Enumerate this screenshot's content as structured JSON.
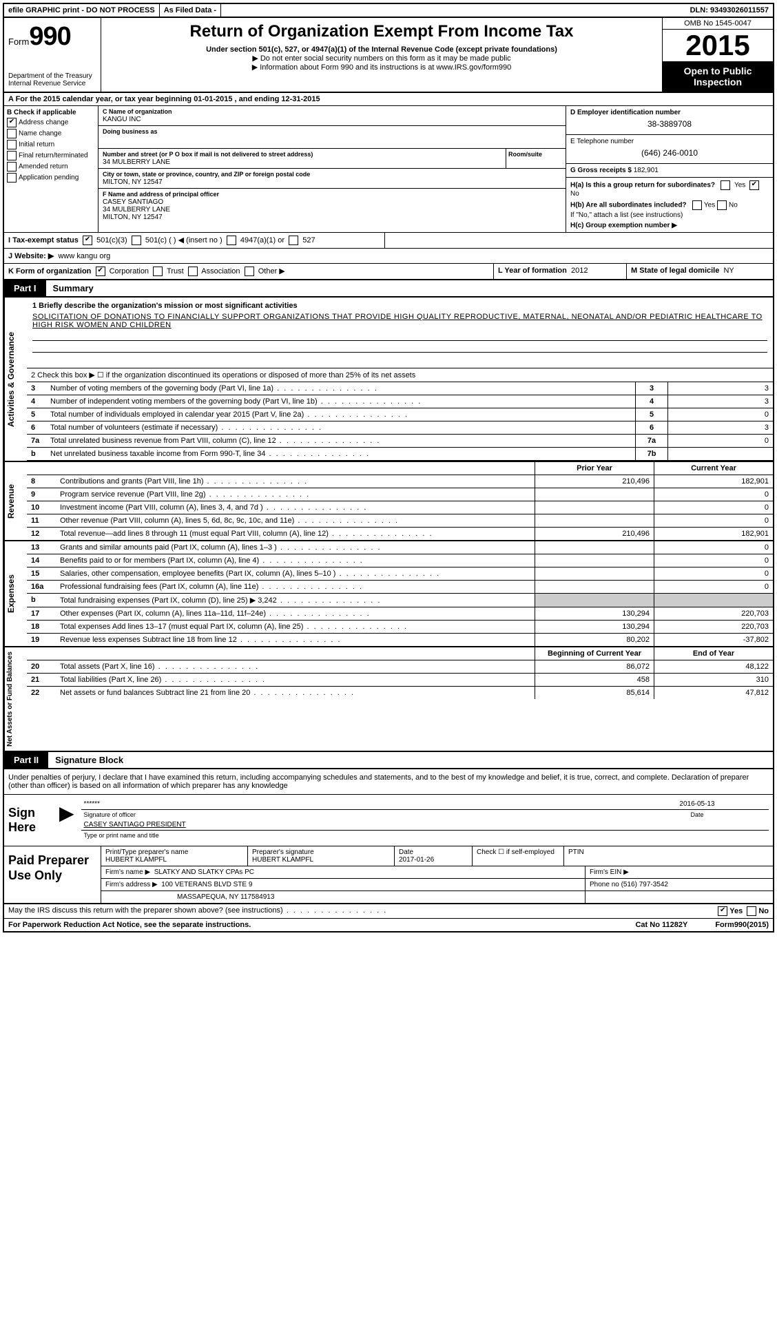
{
  "topbar": {
    "efile": "efile GRAPHIC print - DO NOT PROCESS",
    "asfiled": "As Filed Data -",
    "dln_label": "DLN:",
    "dln": "93493026011557"
  },
  "header": {
    "form_prefix": "Form",
    "form_no": "990",
    "dept": "Department of the Treasury\nInternal Revenue Service",
    "title": "Return of Organization Exempt From Income Tax",
    "sub1": "Under section 501(c), 527, or 4947(a)(1) of the Internal Revenue Code (except private foundations)",
    "sub2": "▶ Do not enter social security numbers on this form as it may be made public",
    "sub3": "▶ Information about Form 990 and its instructions is at www.IRS.gov/form990",
    "omb": "OMB No 1545-0047",
    "year": "2015",
    "open": "Open to Public Inspection"
  },
  "rowA": "A  For the 2015 calendar year, or tax year beginning 01-01-2015    , and ending 12-31-2015",
  "B": {
    "label": "B Check if applicable",
    "items": [
      "Address change",
      "Name change",
      "Initial return",
      "Final return/terminated",
      "Amended return",
      "Application pending"
    ],
    "checked_idx": 0
  },
  "C": {
    "name_label": "C Name of organization",
    "name": "KANGU INC",
    "dba_label": "Doing business as",
    "street_label": "Number and street (or P O box if mail is not delivered to street address)",
    "room_label": "Room/suite",
    "street": "34 MULBERRY LANE",
    "city_label": "City or town, state or province, country, and ZIP or foreign postal code",
    "city": "MILTON, NY 12547",
    "F_label": "F Name and address of principal officer",
    "F_name": "CASEY SANTIAGO",
    "F_street": "34 MULBERRY LANE",
    "F_city": "MILTON, NY 12547"
  },
  "D": {
    "label": "D Employer identification number",
    "ein": "38-3889708",
    "E_label": "E Telephone number",
    "phone": "(646) 246-0010",
    "G_label": "G Gross receipts $",
    "G": "182,901"
  },
  "H": {
    "a": "H(a) Is this a group return for subordinates?",
    "a_yes": "Yes",
    "a_no": "No",
    "a_checked": "No",
    "b": "H(b) Are all subordinates included?",
    "note": "If \"No,\" attach a list (see instructions)",
    "c": "H(c) Group exemption number ▶"
  },
  "I": {
    "label": "I   Tax-exempt status",
    "c3": "501(c)(3)",
    "c": "501(c) ( ) ◀ (insert no )",
    "a": "4947(a)(1) or",
    "s": "527",
    "checked": "501(c)(3)"
  },
  "J": {
    "label": "J   Website: ▶",
    "val": "www kangu org"
  },
  "K": {
    "label": "K Form of organization",
    "opts": [
      "Corporation",
      "Trust",
      "Association",
      "Other ▶"
    ],
    "checked": "Corporation"
  },
  "L": {
    "label": "L Year of formation",
    "val": "2012"
  },
  "M": {
    "label": "M State of legal domicile",
    "val": "NY"
  },
  "part1": {
    "tag": "Part I",
    "title": "Summary"
  },
  "gov": {
    "label": "Activities & Governance",
    "l1_label": "1 Briefly describe the organization's mission or most significant activities",
    "l1_text": "SOLICITATION OF DONATIONS TO FINANCIALLY SUPPORT ORGANIZATIONS THAT PROVIDE HIGH QUALITY REPRODUCTIVE, MATERNAL, NEONATAL AND/OR PEDIATRIC HEALTHCARE TO HIGH RISK WOMEN AND CHILDREN",
    "l2": "2 Check this box ▶ ☐ if the organization discontinued its operations or disposed of more than 25% of its net assets",
    "rows": [
      {
        "n": "3",
        "t": "Number of voting members of the governing body (Part VI, line 1a)",
        "box": "3",
        "v": "3"
      },
      {
        "n": "4",
        "t": "Number of independent voting members of the governing body (Part VI, line 1b)",
        "box": "4",
        "v": "3"
      },
      {
        "n": "5",
        "t": "Total number of individuals employed in calendar year 2015 (Part V, line 2a)",
        "box": "5",
        "v": "0"
      },
      {
        "n": "6",
        "t": "Total number of volunteers (estimate if necessary)",
        "box": "6",
        "v": "3"
      },
      {
        "n": "7a",
        "t": "Total unrelated business revenue from Part VIII, column (C), line 12",
        "box": "7a",
        "v": "0"
      },
      {
        "n": "b",
        "t": "Net unrelated business taxable income from Form 990-T, line 34",
        "box": "7b",
        "v": ""
      }
    ]
  },
  "rev": {
    "label": "Revenue",
    "hdr": {
      "c1": "Prior Year",
      "c2": "Current Year"
    },
    "rows": [
      {
        "n": "8",
        "t": "Contributions and grants (Part VIII, line 1h)",
        "c1": "210,496",
        "c2": "182,901"
      },
      {
        "n": "9",
        "t": "Program service revenue (Part VIII, line 2g)",
        "c1": "",
        "c2": "0"
      },
      {
        "n": "10",
        "t": "Investment income (Part VIII, column (A), lines 3, 4, and 7d )",
        "c1": "",
        "c2": "0"
      },
      {
        "n": "11",
        "t": "Other revenue (Part VIII, column (A), lines 5, 6d, 8c, 9c, 10c, and 11e)",
        "c1": "",
        "c2": "0"
      },
      {
        "n": "12",
        "t": "Total revenue—add lines 8 through 11 (must equal Part VIII, column (A), line 12)",
        "c1": "210,496",
        "c2": "182,901"
      }
    ]
  },
  "exp": {
    "label": "Expenses",
    "rows": [
      {
        "n": "13",
        "t": "Grants and similar amounts paid (Part IX, column (A), lines 1–3 )",
        "c1": "",
        "c2": "0"
      },
      {
        "n": "14",
        "t": "Benefits paid to or for members (Part IX, column (A), line 4)",
        "c1": "",
        "c2": "0"
      },
      {
        "n": "15",
        "t": "Salaries, other compensation, employee benefits (Part IX, column (A), lines 5–10 )",
        "c1": "",
        "c2": "0"
      },
      {
        "n": "16a",
        "t": "Professional fundraising fees (Part IX, column (A), line 11e)",
        "c1": "",
        "c2": "0"
      },
      {
        "n": "b",
        "t": "Total fundraising expenses (Part IX, column (D), line 25) ▶ 3,242",
        "c1": "—",
        "c2": "—"
      },
      {
        "n": "17",
        "t": "Other expenses (Part IX, column (A), lines 11a–11d, 11f–24e)",
        "c1": "130,294",
        "c2": "220,703"
      },
      {
        "n": "18",
        "t": "Total expenses Add lines 13–17 (must equal Part IX, column (A), line 25)",
        "c1": "130,294",
        "c2": "220,703"
      },
      {
        "n": "19",
        "t": "Revenue less expenses Subtract line 18 from line 12",
        "c1": "80,202",
        "c2": "-37,802"
      }
    ]
  },
  "net": {
    "label": "Net Assets or Fund Balances",
    "hdr": {
      "c1": "Beginning of Current Year",
      "c2": "End of Year"
    },
    "rows": [
      {
        "n": "20",
        "t": "Total assets (Part X, line 16)",
        "c1": "86,072",
        "c2": "48,122"
      },
      {
        "n": "21",
        "t": "Total liabilities (Part X, line 26)",
        "c1": "458",
        "c2": "310"
      },
      {
        "n": "22",
        "t": "Net assets or fund balances Subtract line 21 from line 20",
        "c1": "85,614",
        "c2": "47,812"
      }
    ]
  },
  "part2": {
    "tag": "Part II",
    "title": "Signature Block"
  },
  "sig": {
    "decl": "Under penalties of perjury, I declare that I have examined this return, including accompanying schedules and statements, and to the best of my knowledge and belief, it is true, correct, and complete. Declaration of preparer (other than officer) is based on all information of which preparer has any knowledge",
    "sign": "Sign Here",
    "sig_stars": "******",
    "sig_lbl": "Signature of officer",
    "sig_date": "2016-05-13",
    "sig_date_lbl": "Date",
    "name": "CASEY SANTIAGO PRESIDENT",
    "name_lbl": "Type or print name and title"
  },
  "prep": {
    "label": "Paid Preparer Use Only",
    "r1": {
      "a": "Print/Type preparer's name",
      "av": "HUBERT KLAMPFL",
      "b": "Preparer's signature",
      "bv": "HUBERT KLAMPFL",
      "c": "Date",
      "cv": "2017-01-26",
      "d": "Check ☐ if self-employed",
      "e": "PTIN"
    },
    "r2": {
      "a": "Firm's name    ▶",
      "av": "SLATKY AND SLATKY CPAs PC",
      "b": "Firm's EIN ▶"
    },
    "r3": {
      "a": "Firm's address ▶",
      "av": "100 VETERANS BLVD STE 9",
      "b": "Phone no (516) 797-3542"
    },
    "r4": {
      "av": "MASSAPEQUA, NY 117584913"
    }
  },
  "bottom": {
    "discuss": "May the IRS discuss this return with the preparer shown above? (see instructions)",
    "yes": "Yes",
    "no": "No",
    "paper": "For Paperwork Reduction Act Notice, see the separate instructions.",
    "cat": "Cat No 11282Y",
    "form": "Form 990 (2015)"
  }
}
